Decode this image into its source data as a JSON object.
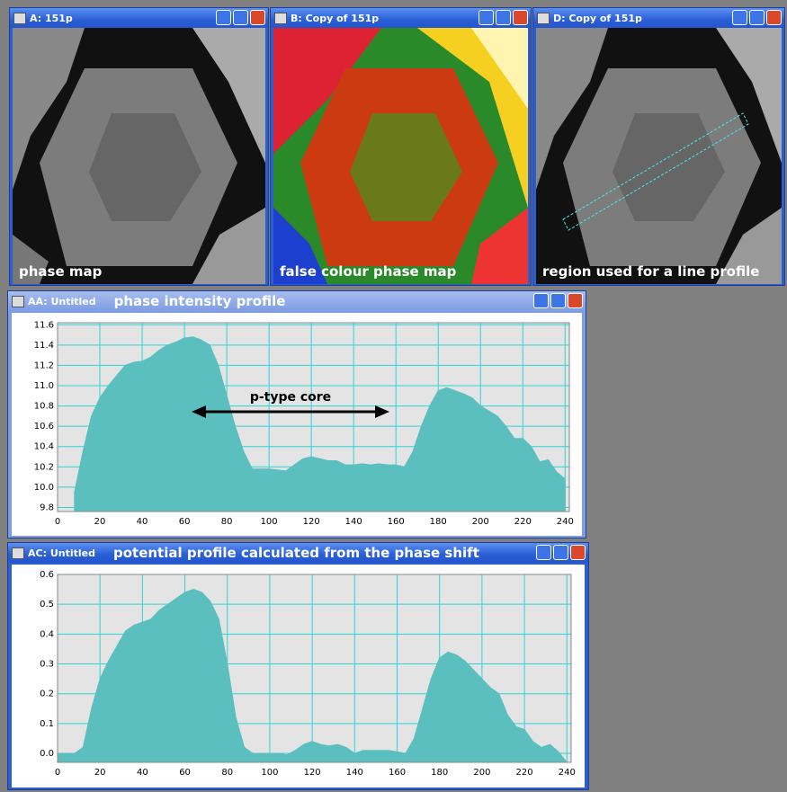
{
  "windows": [
    {
      "title": "A: 151p",
      "caption": "phase map"
    },
    {
      "title": "B: Copy of 151p",
      "caption": "false colour phase map"
    },
    {
      "title": "D: Copy of 151p",
      "caption": "region used for a line profile"
    }
  ],
  "chart_data": [
    {
      "type": "area",
      "window_title": "AA: Untitled",
      "title": "phase intensity profile",
      "annotation": "p-type core",
      "color": "#5bbfbf",
      "grid": true,
      "x": [
        0,
        4,
        8,
        12,
        16,
        20,
        24,
        28,
        32,
        36,
        40,
        44,
        48,
        52,
        56,
        60,
        64,
        68,
        72,
        76,
        80,
        84,
        88,
        92,
        96,
        100,
        104,
        108,
        112,
        116,
        120,
        124,
        128,
        132,
        136,
        140,
        144,
        148,
        152,
        156,
        160,
        164,
        168,
        172,
        176,
        180,
        184,
        188,
        192,
        196,
        200,
        204,
        208,
        212,
        216,
        220,
        224,
        228,
        232,
        236,
        240
      ],
      "values": [
        null,
        null,
        9.95,
        10.35,
        10.7,
        10.88,
        11.0,
        11.1,
        11.2,
        11.23,
        11.24,
        11.28,
        11.35,
        11.4,
        11.43,
        11.47,
        11.48,
        11.45,
        11.4,
        11.2,
        10.9,
        10.6,
        10.35,
        10.18,
        10.18,
        10.18,
        10.17,
        10.16,
        10.22,
        10.28,
        10.3,
        10.28,
        10.26,
        10.26,
        10.22,
        10.22,
        10.23,
        10.22,
        10.23,
        10.22,
        10.22,
        10.2,
        10.35,
        10.6,
        10.8,
        10.95,
        10.98,
        10.95,
        10.92,
        10.88,
        10.8,
        10.75,
        10.7,
        10.6,
        10.48,
        10.48,
        10.4,
        10.25,
        10.27,
        10.15,
        10.08
      ],
      "xlim": [
        0,
        242
      ],
      "ylim": [
        9.76,
        11.62
      ],
      "xticks": [
        0,
        20,
        40,
        60,
        80,
        100,
        120,
        140,
        160,
        180,
        200,
        220,
        240
      ],
      "yticks": [
        9.8,
        {
          "value": 10,
          "label": "10.0"
        },
        10.2,
        10.4,
        10.6,
        10.8,
        {
          "value": 11,
          "label": "11.0"
        },
        11.2,
        11.4,
        11.6
      ]
    },
    {
      "type": "area",
      "window_title": "AC: Untitled",
      "title": "potential profile calculated from the phase shift",
      "color": "#5bbfbf",
      "grid": true,
      "x": [
        0,
        4,
        8,
        12,
        16,
        20,
        24,
        28,
        32,
        36,
        40,
        44,
        48,
        52,
        56,
        60,
        64,
        68,
        72,
        76,
        80,
        84,
        88,
        92,
        96,
        100,
        104,
        108,
        112,
        116,
        120,
        124,
        128,
        132,
        136,
        140,
        144,
        148,
        152,
        156,
        160,
        164,
        168,
        172,
        176,
        180,
        184,
        188,
        192,
        196,
        200,
        204,
        208,
        212,
        216,
        220,
        224,
        228,
        232,
        236,
        240
      ],
      "values": [
        0,
        0,
        0,
        0.02,
        0.15,
        0.25,
        0.31,
        0.36,
        0.41,
        0.43,
        0.44,
        0.45,
        0.48,
        0.5,
        0.52,
        0.54,
        0.55,
        0.54,
        0.51,
        0.45,
        0.3,
        0.12,
        0.02,
        0,
        0,
        0,
        0,
        -0.005,
        0.01,
        0.03,
        0.04,
        0.03,
        0.025,
        0.03,
        0.02,
        0,
        0.01,
        0.01,
        0.01,
        0.01,
        0.005,
        0,
        0.05,
        0.15,
        0.25,
        0.32,
        0.34,
        0.33,
        0.31,
        0.28,
        0.25,
        0.22,
        0.2,
        0.13,
        0.09,
        0.08,
        0.04,
        0.02,
        0.03,
        0.005,
        -0.03
      ],
      "xlim": [
        0,
        242
      ],
      "ylim": [
        -0.03,
        0.6
      ],
      "xticks": [
        0,
        20,
        40,
        60,
        80,
        100,
        120,
        140,
        160,
        180,
        200,
        220,
        240
      ],
      "yticks": [
        {
          "value": 0,
          "label": "0.0"
        },
        0.1,
        0.2,
        0.3,
        0.4,
        0.5,
        0.6
      ]
    }
  ]
}
